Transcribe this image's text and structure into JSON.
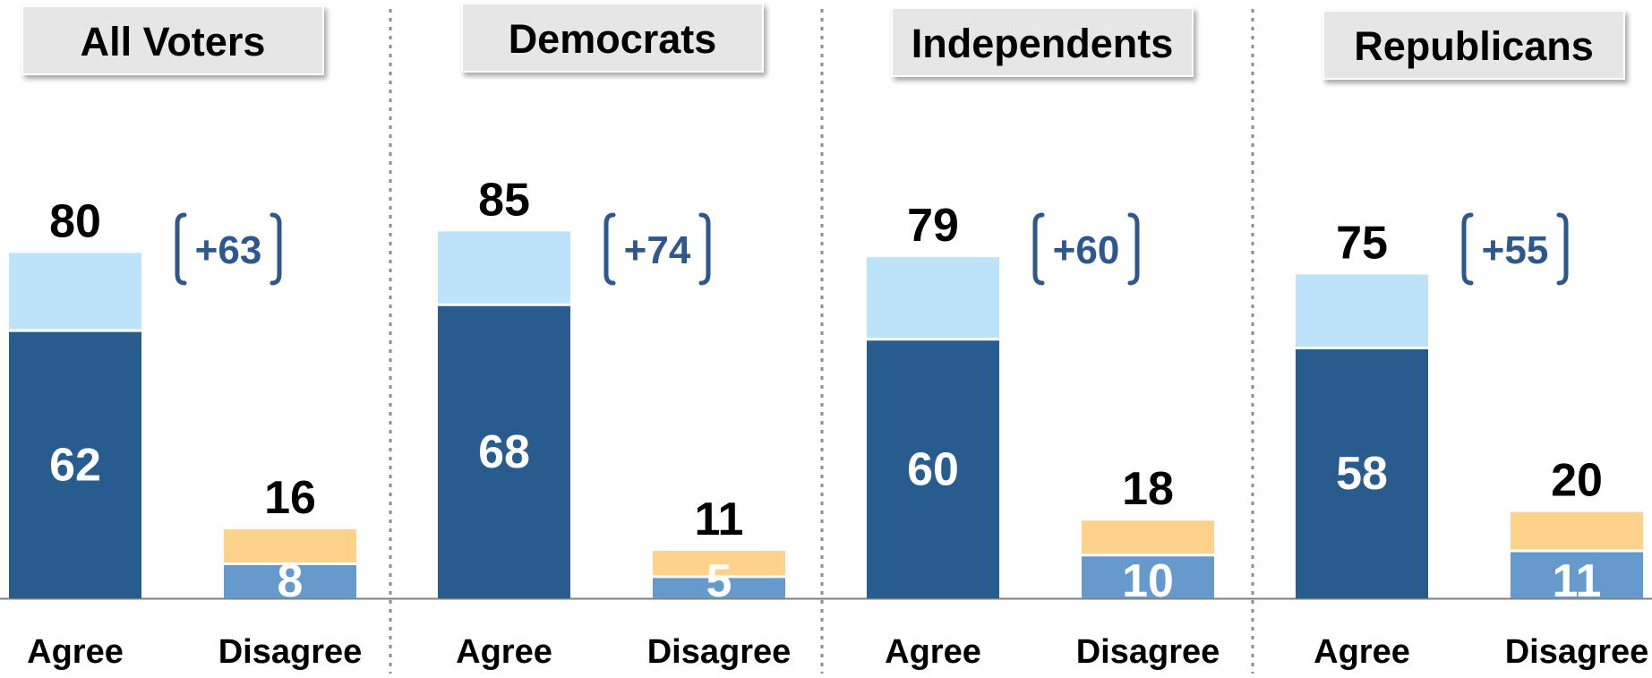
{
  "chart_data": {
    "type": "bar",
    "stacked": true,
    "panels": [
      {
        "group": "All Voters",
        "net_label": "+63",
        "categories": [
          "Agree",
          "Disagree"
        ],
        "totals": [
          80,
          16
        ],
        "inner_values": [
          62,
          8
        ]
      },
      {
        "group": "Democrats",
        "net_label": "+74",
        "categories": [
          "Agree",
          "Disagree"
        ],
        "totals": [
          85,
          11
        ],
        "inner_values": [
          68,
          5
        ]
      },
      {
        "group": "Independents",
        "net_label": "+60",
        "categories": [
          "Agree",
          "Disagree"
        ],
        "totals": [
          79,
          18
        ],
        "inner_values": [
          60,
          10
        ]
      },
      {
        "group": "Republicans",
        "net_label": "+55",
        "categories": [
          "Agree",
          "Disagree"
        ],
        "totals": [
          75,
          20
        ],
        "inner_values": [
          58,
          11
        ]
      }
    ],
    "colors": {
      "agree_inner": "#285C8E",
      "agree_outer": "#BDE3FA",
      "disagree_inner": "#6699CC",
      "disagree_outer": "#FDD38C",
      "net_label": "#2E578E",
      "header_bg": "#E6E6E6"
    },
    "ylim": [
      0,
      100
    ],
    "legend": "none",
    "grid": false
  }
}
